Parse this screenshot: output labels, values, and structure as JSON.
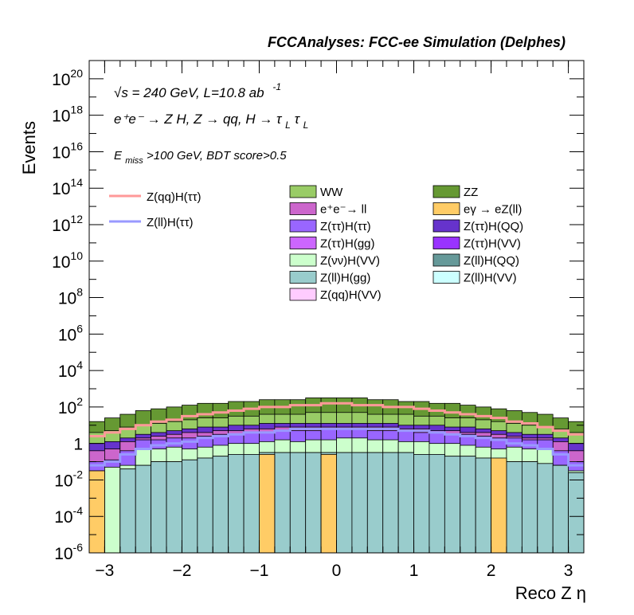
{
  "chart_data": {
    "type": "area",
    "title": "FCCAnalyses: FCC-ee Simulation (Delphes)",
    "xlabel": "Reco Z η",
    "ylabel": "Events",
    "log_y": true,
    "xlim": [
      -3.2,
      3.2
    ],
    "ylim_exponent": [
      -6,
      21
    ],
    "x_ticks": [
      "−3",
      "−2",
      "−1",
      "0",
      "1",
      "2",
      "3"
    ],
    "y_ticks": [
      {
        "base": "10",
        "exp": "20",
        "value": 1e+20
      },
      {
        "base": "10",
        "exp": "18",
        "value": 1e+18
      },
      {
        "base": "10",
        "exp": "16",
        "value": 1e+16
      },
      {
        "base": "10",
        "exp": "14",
        "value": 100000000000000.0
      },
      {
        "base": "10",
        "exp": "12",
        "value": 1000000000000.0
      },
      {
        "base": "10",
        "exp": "10",
        "value": 10000000000.0
      },
      {
        "base": "10",
        "exp": "8",
        "value": 100000000.0
      },
      {
        "base": "10",
        "exp": "6",
        "value": 1000000.0
      },
      {
        "base": "10",
        "exp": "4",
        "value": 10000.0
      },
      {
        "base": "10",
        "exp": "2",
        "value": 100.0
      },
      {
        "base": "1",
        "exp": "",
        "value": 1
      },
      {
        "base": "10",
        "exp": "-2",
        "value": 0.01
      },
      {
        "base": "10",
        "exp": "-4",
        "value": 0.0001
      },
      {
        "base": "10",
        "exp": "-6",
        "value": 1e-06
      }
    ],
    "annotations": {
      "sqrt_s": "√s = 240 GeV, L=10.8 ab",
      "sqrt_s_sup": "-1",
      "process": "e⁺e⁻ → Z H, Z → qq, H → τ",
      "process_sub": "L",
      "process_tau2": "τ",
      "process_sub2": "L",
      "cut_pre": "E",
      "cut_sub": "miss",
      "cut_post": ">100 GeV, BDT score>0.5"
    },
    "bin_edges": [
      -3.2,
      -3.0,
      -2.8,
      -2.6,
      -2.4,
      -2.2,
      -2.0,
      -1.8,
      -1.6,
      -1.4,
      -1.2,
      -1.0,
      -0.8,
      -0.6,
      -0.4,
      -0.2,
      0.0,
      0.2,
      0.4,
      0.6,
      0.8,
      1.0,
      1.2,
      1.4,
      1.6,
      1.8,
      2.0,
      2.2,
      2.4,
      2.6,
      2.8,
      3.0,
      3.2
    ],
    "stack_totals_log10": [
      {
        "name": "Z(ll)H(gg)",
        "color": "#99cccc",
        "levels": [
          -6,
          -6,
          -1.4,
          -1.2,
          -1.0,
          -1.0,
          -0.9,
          -0.8,
          -0.7,
          -0.6,
          -0.6,
          -0.5,
          -0.5,
          -0.5,
          -0.5,
          -0.5,
          -0.5,
          -0.5,
          -0.5,
          -0.5,
          -0.5,
          -0.6,
          -0.6,
          -0.7,
          -0.7,
          -0.8,
          -0.9,
          -1.0,
          -1.0,
          -1.1,
          -1.2,
          -1.6
        ]
      },
      {
        "name": "eγ → eZ(ll)",
        "color": "#ffcc66",
        "levels": [
          -1.5,
          -6,
          -1.4,
          -1.2,
          -1.0,
          -1.0,
          -0.9,
          -0.8,
          -0.7,
          -0.6,
          -0.6,
          -0.5,
          -0.5,
          -0.5,
          -0.5,
          -0.5,
          -0.5,
          -0.5,
          -0.5,
          -0.5,
          -0.5,
          -0.6,
          -0.6,
          -0.7,
          -0.7,
          -0.8,
          -0.9,
          -1.0,
          -1.0,
          -1.1,
          -1.2,
          -1.6
        ]
      },
      {
        "name": "Z(νν)H(VV)",
        "color": "#ccffcc",
        "levels": [
          -1.5,
          -1.3,
          -1.2,
          -0.3,
          -0.3,
          -0.2,
          -0.3,
          -0.2,
          -0.1,
          0.0,
          0.0,
          0.1,
          0.2,
          0.1,
          0.2,
          0.2,
          0.3,
          0.3,
          0.2,
          0.2,
          0.1,
          0.1,
          0.0,
          0.0,
          -0.1,
          -0.2,
          -0.3,
          -0.2,
          -0.3,
          -0.3,
          -1.2,
          -1.5
        ]
      },
      {
        "name": "Z(ττ)H(ττ)",
        "color": "#9966ff",
        "levels": [
          -1.0,
          -0.9,
          -0.4,
          0.2,
          0.2,
          0.3,
          0.3,
          0.4,
          0.5,
          0.5,
          0.6,
          0.6,
          0.7,
          0.7,
          0.7,
          0.8,
          0.8,
          0.8,
          0.7,
          0.7,
          0.7,
          0.6,
          0.6,
          0.5,
          0.5,
          0.4,
          0.3,
          0.3,
          0.2,
          0.2,
          -0.4,
          -1.0
        ]
      },
      {
        "name": "e⁺e⁻→ ll",
        "color": "#cc66cc",
        "levels": [
          -0.4,
          -0.3,
          0.1,
          0.3,
          0.4,
          0.5,
          0.6,
          0.6,
          0.7,
          0.7,
          0.8,
          0.8,
          0.9,
          0.9,
          0.9,
          0.9,
          0.9,
          0.9,
          0.9,
          0.9,
          0.8,
          0.8,
          0.7,
          0.7,
          0.6,
          0.6,
          0.5,
          0.4,
          0.3,
          0.3,
          0.1,
          -0.4
        ]
      },
      {
        "name": "Z(ττ)H(QQ)",
        "color": "#6633cc",
        "levels": [
          0.0,
          0.1,
          0.3,
          0.5,
          0.6,
          0.7,
          0.8,
          0.9,
          0.9,
          1.0,
          1.0,
          1.1,
          1.1,
          1.1,
          1.1,
          1.1,
          1.1,
          1.1,
          1.1,
          1.1,
          1.0,
          1.0,
          1.0,
          0.9,
          0.9,
          0.8,
          0.7,
          0.6,
          0.5,
          0.5,
          0.3,
          0.0
        ]
      },
      {
        "name": "WW",
        "color": "#99cc66",
        "levels": [
          0.6,
          0.7,
          0.9,
          1.0,
          1.1,
          1.2,
          1.3,
          1.4,
          1.4,
          1.5,
          1.5,
          1.6,
          1.6,
          1.6,
          1.7,
          1.7,
          1.7,
          1.7,
          1.6,
          1.6,
          1.6,
          1.5,
          1.5,
          1.4,
          1.4,
          1.3,
          1.2,
          1.1,
          1.0,
          0.9,
          0.8,
          0.6
        ]
      },
      {
        "name": "ZZ",
        "color": "#669933",
        "levels": [
          1.2,
          1.4,
          1.6,
          1.8,
          1.9,
          2.0,
          2.1,
          2.2,
          2.2,
          2.3,
          2.3,
          2.4,
          2.4,
          2.4,
          2.5,
          2.5,
          2.5,
          2.5,
          2.4,
          2.4,
          2.3,
          2.3,
          2.2,
          2.2,
          2.1,
          2.0,
          1.9,
          1.8,
          1.7,
          1.6,
          1.4,
          1.2
        ]
      }
    ],
    "overlay_lines": [
      {
        "name": "Z(qq)H(ττ)",
        "color": "#ff9999",
        "levels": [
          0.4,
          0.6,
          0.8,
          1.0,
          1.2,
          1.3,
          1.5,
          1.6,
          1.7,
          1.8,
          1.9,
          2.0,
          2.0,
          2.1,
          2.1,
          2.2,
          2.2,
          2.1,
          2.1,
          2.0,
          2.0,
          1.9,
          1.8,
          1.7,
          1.6,
          1.5,
          1.4,
          1.2,
          1.1,
          0.9,
          0.7,
          0.5
        ]
      },
      {
        "name": "Z(ll)H(ττ)",
        "color": "#9999ff",
        "levels": [
          -1.2,
          -1.0,
          -0.6,
          -0.3,
          -0.1,
          0.0,
          0.1,
          0.3,
          0.4,
          0.5,
          0.6,
          0.6,
          0.7,
          0.8,
          0.8,
          0.8,
          0.8,
          0.8,
          0.8,
          0.8,
          0.7,
          0.7,
          0.6,
          0.5,
          0.4,
          0.3,
          0.2,
          0.0,
          -0.1,
          -0.3,
          -0.6,
          -1.2
        ]
      }
    ],
    "legend_lines": [
      {
        "label": "Z(qq)H(ττ)",
        "color": "#ff9999"
      },
      {
        "label": "Z(ll)H(ττ)",
        "color": "#9999ff"
      }
    ],
    "legend_stack": [
      {
        "label": "WW",
        "color": "#99cc66"
      },
      {
        "label": "ZZ",
        "color": "#669933"
      },
      {
        "label": "e⁺e⁻→ ll",
        "color": "#cc66cc"
      },
      {
        "label": "eγ → eZ(ll)",
        "color": "#ffcc66"
      },
      {
        "label": "Z(ττ)H(ττ)",
        "color": "#9966ff"
      },
      {
        "label": "Z(ττ)H(QQ)",
        "color": "#6633cc"
      },
      {
        "label": "Z(ττ)H(gg)",
        "color": "#cc66ff"
      },
      {
        "label": "Z(ττ)H(VV)",
        "color": "#9933ff"
      },
      {
        "label": "Z(νν)H(VV)",
        "color": "#ccffcc"
      },
      {
        "label": "Z(ll)H(QQ)",
        "color": "#669999"
      },
      {
        "label": "Z(ll)H(gg)",
        "color": "#99cccc"
      },
      {
        "label": "Z(ll)H(VV)",
        "color": "#ccffff"
      },
      {
        "label": "Z(qq)H(VV)",
        "color": "#ffccff"
      }
    ],
    "ey_spikes": [
      {
        "bin": 11,
        "level": -0.6
      },
      {
        "bin": 15,
        "level": -0.6
      },
      {
        "bin": 26,
        "level": -0.8
      }
    ]
  }
}
